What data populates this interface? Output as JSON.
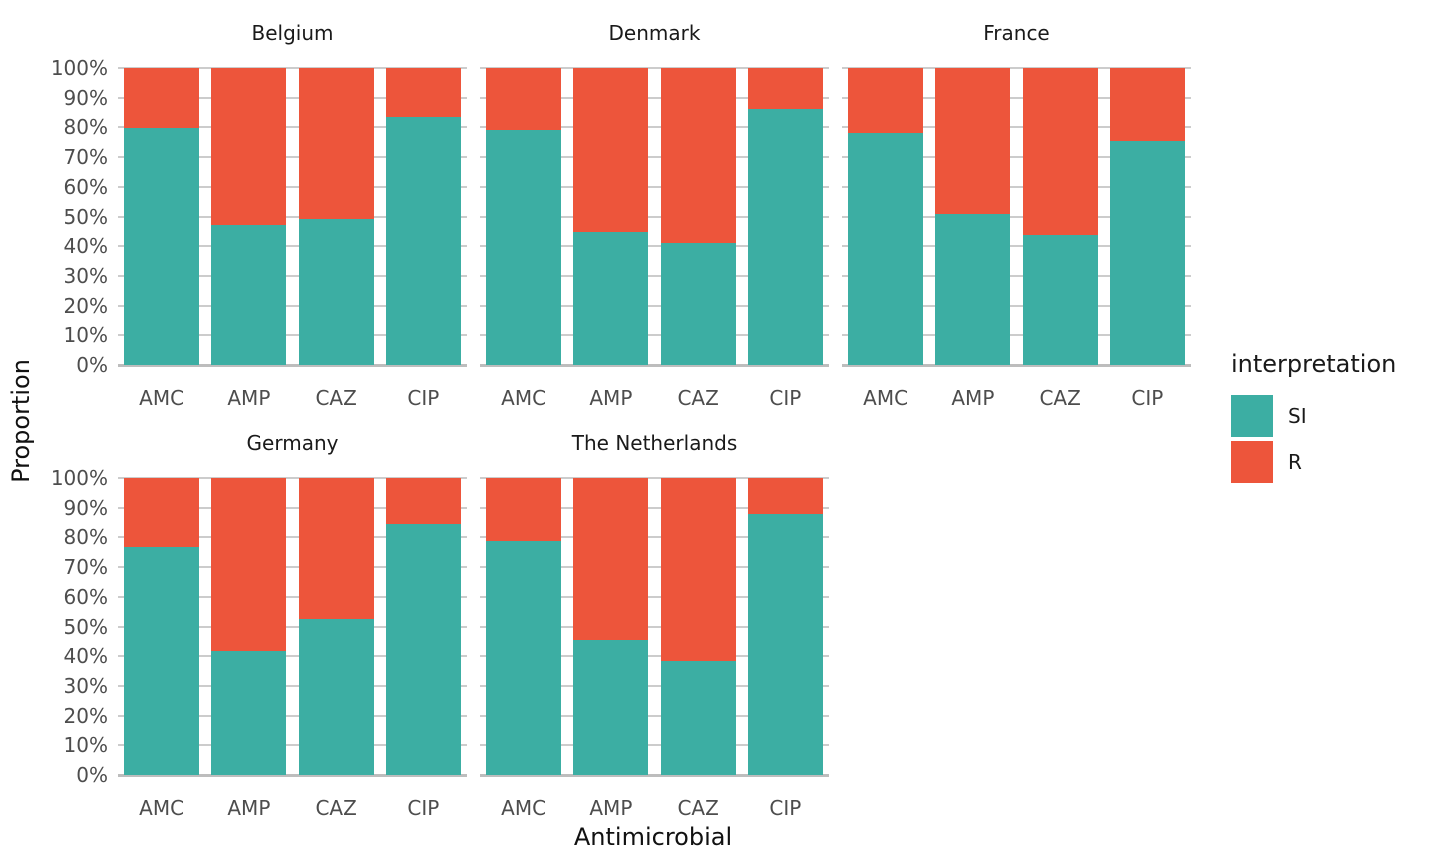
{
  "chart_data": {
    "type": "bar",
    "subtype": "stacked-percent-faceted",
    "title": "",
    "xlabel": "Antimicrobial",
    "ylabel": "Proportion",
    "categories": [
      "AMC",
      "AMP",
      "CAZ",
      "CIP"
    ],
    "y_ticks": [
      "0%",
      "10%",
      "20%",
      "30%",
      "40%",
      "50%",
      "60%",
      "70%",
      "80%",
      "90%",
      "100%"
    ],
    "ylim": [
      0,
      100
    ],
    "grid": true,
    "legend": {
      "title": "interpretation",
      "position": "right",
      "entries": [
        {
          "label": "SI",
          "color": "#3CAEA3"
        },
        {
          "label": "R",
          "color": "#ED553B"
        }
      ]
    },
    "facets": [
      {
        "title": "Belgium",
        "row": 0,
        "col": 0,
        "series": [
          {
            "name": "SI",
            "values": [
              79.8,
              47.3,
              49.0,
              83.4
            ]
          },
          {
            "name": "R",
            "values": [
              20.2,
              52.7,
              51.0,
              16.6
            ]
          }
        ]
      },
      {
        "title": "Denmark",
        "row": 0,
        "col": 1,
        "series": [
          {
            "name": "SI",
            "values": [
              79.2,
              44.8,
              41.0,
              86.2
            ]
          },
          {
            "name": "R",
            "values": [
              20.8,
              55.2,
              59.0,
              13.8
            ]
          }
        ]
      },
      {
        "title": "France",
        "row": 0,
        "col": 2,
        "series": [
          {
            "name": "SI",
            "values": [
              78.0,
              51.0,
              43.7,
              75.5
            ]
          },
          {
            "name": "R",
            "values": [
              22.0,
              49.0,
              56.3,
              24.5
            ]
          }
        ]
      },
      {
        "title": "Germany",
        "row": 1,
        "col": 0,
        "series": [
          {
            "name": "SI",
            "values": [
              76.7,
              41.6,
              52.5,
              84.6
            ]
          },
          {
            "name": "R",
            "values": [
              23.3,
              58.4,
              47.5,
              15.4
            ]
          }
        ]
      },
      {
        "title": "The Netherlands",
        "row": 1,
        "col": 1,
        "series": [
          {
            "name": "SI",
            "values": [
              78.7,
              45.5,
              38.3,
              88.0
            ]
          },
          {
            "name": "R",
            "values": [
              21.3,
              54.5,
              61.7,
              12.0
            ]
          }
        ]
      }
    ],
    "colors": {
      "SI": "#3CAEA3",
      "R": "#ED553B",
      "gridline": "#CCCCCC",
      "axis_text": "#4D4D4D",
      "title_text": "#1A1A1A"
    }
  }
}
